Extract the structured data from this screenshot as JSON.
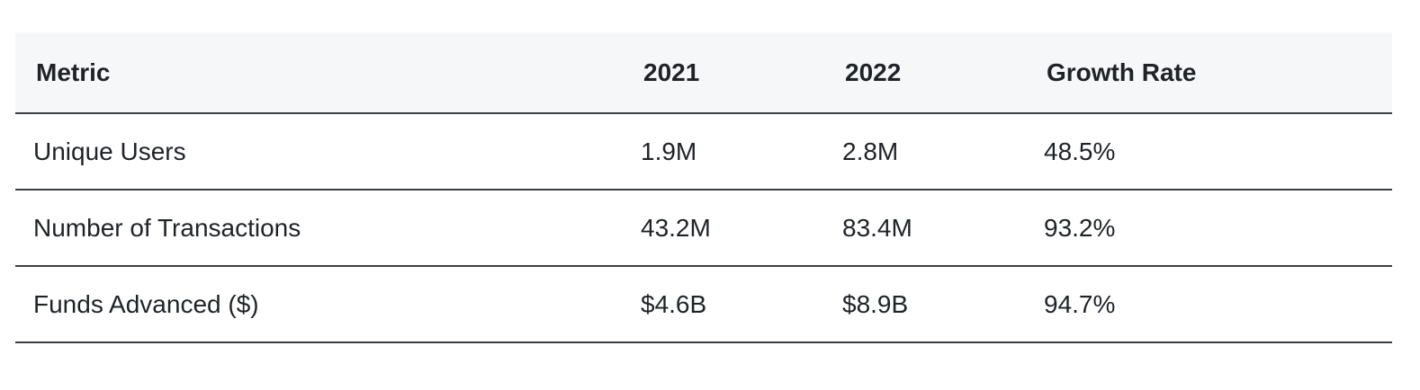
{
  "table": {
    "headers": [
      "Metric",
      "2021",
      "2022",
      "Growth Rate"
    ],
    "rows": [
      [
        "Unique Users",
        "1.9M",
        "2.8M",
        "48.5%"
      ],
      [
        "Number of Transactions",
        "43.2M",
        "83.4M",
        "93.2%"
      ],
      [
        "Funds Advanced ($)",
        "$4.6B",
        "$8.9B",
        "94.7%"
      ]
    ]
  }
}
